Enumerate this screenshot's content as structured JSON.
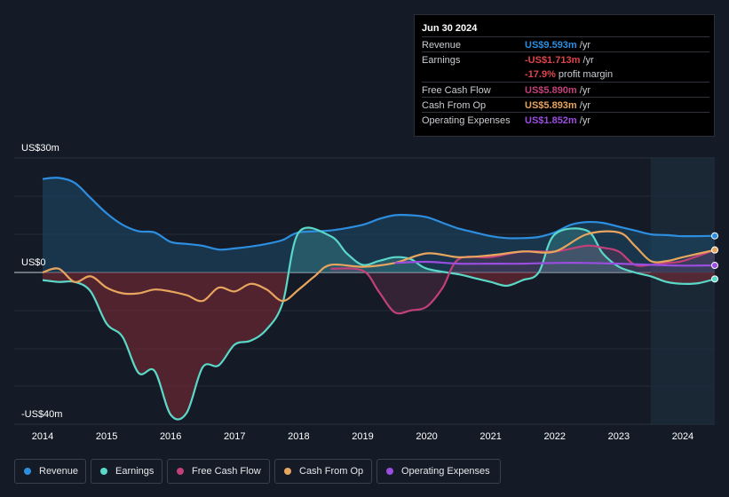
{
  "chart_data": {
    "type": "area",
    "y_axis": {
      "top_label": "US$30m",
      "zero_label": "US$0",
      "bottom_label": "-US$40m",
      "ylim": [
        -40,
        30
      ]
    },
    "x_ticks": [
      "2014",
      "2015",
      "2016",
      "2017",
      "2018",
      "2019",
      "2020",
      "2021",
      "2022",
      "2023",
      "2024"
    ],
    "x_range": [
      2013.6,
      2024.5
    ],
    "highlight_start": 2023.5,
    "series": [
      {
        "name": "Revenue",
        "color": "#2d8ee0",
        "points": [
          [
            2014.0,
            24.5
          ],
          [
            2014.25,
            24.8
          ],
          [
            2014.5,
            23.5
          ],
          [
            2014.75,
            19.5
          ],
          [
            2015.0,
            15.5
          ],
          [
            2015.25,
            12.5
          ],
          [
            2015.5,
            10.8
          ],
          [
            2015.75,
            10.5
          ],
          [
            2016.0,
            8.0
          ],
          [
            2016.25,
            7.5
          ],
          [
            2016.5,
            7.0
          ],
          [
            2016.75,
            6.0
          ],
          [
            2017.0,
            6.3
          ],
          [
            2017.25,
            6.8
          ],
          [
            2017.5,
            7.5
          ],
          [
            2017.75,
            8.5
          ],
          [
            2018.0,
            10.5
          ],
          [
            2018.5,
            11.0
          ],
          [
            2019.0,
            12.5
          ],
          [
            2019.25,
            14.0
          ],
          [
            2019.5,
            15.0
          ],
          [
            2019.75,
            15.0
          ],
          [
            2020.0,
            14.5
          ],
          [
            2020.25,
            13.0
          ],
          [
            2020.5,
            11.5
          ],
          [
            2020.75,
            10.5
          ],
          [
            2021.0,
            9.5
          ],
          [
            2021.25,
            9.0
          ],
          [
            2021.5,
            9.0
          ],
          [
            2021.75,
            9.3
          ],
          [
            2022.0,
            10.5
          ],
          [
            2022.25,
            12.5
          ],
          [
            2022.5,
            13.2
          ],
          [
            2022.75,
            13.0
          ],
          [
            2023.0,
            12.0
          ],
          [
            2023.25,
            11.0
          ],
          [
            2023.5,
            10.0
          ],
          [
            2023.75,
            9.8
          ],
          [
            2024.0,
            9.5
          ],
          [
            2024.5,
            9.6
          ]
        ]
      },
      {
        "name": "Earnings",
        "color": "#5ad8c8",
        "points": [
          [
            2014.0,
            -2.0
          ],
          [
            2014.25,
            -2.5
          ],
          [
            2014.5,
            -2.5
          ],
          [
            2014.75,
            -5.0
          ],
          [
            2015.0,
            -13.5
          ],
          [
            2015.25,
            -17.0
          ],
          [
            2015.5,
            -26.5
          ],
          [
            2015.75,
            -26.0
          ],
          [
            2016.0,
            -37.5
          ],
          [
            2016.25,
            -37.0
          ],
          [
            2016.5,
            -25.0
          ],
          [
            2016.75,
            -24.5
          ],
          [
            2017.0,
            -19.0
          ],
          [
            2017.25,
            -18.0
          ],
          [
            2017.5,
            -15.0
          ],
          [
            2017.75,
            -8.0
          ],
          [
            2018.0,
            10.5
          ],
          [
            2018.5,
            9.5
          ],
          [
            2018.75,
            5.0
          ],
          [
            2019.0,
            2.0
          ],
          [
            2019.25,
            3.0
          ],
          [
            2019.5,
            4.0
          ],
          [
            2019.75,
            3.5
          ],
          [
            2020.0,
            1.0
          ],
          [
            2020.5,
            -0.5
          ],
          [
            2020.75,
            -1.5
          ],
          [
            2021.0,
            -2.5
          ],
          [
            2021.25,
            -3.5
          ],
          [
            2021.5,
            -2.0
          ],
          [
            2021.75,
            0.0
          ],
          [
            2022.0,
            10.0
          ],
          [
            2022.5,
            11.0
          ],
          [
            2022.75,
            5.0
          ],
          [
            2023.0,
            1.5
          ],
          [
            2023.25,
            0.0
          ],
          [
            2023.5,
            -1.0
          ],
          [
            2023.75,
            -2.5
          ],
          [
            2024.0,
            -3.0
          ],
          [
            2024.25,
            -2.8
          ],
          [
            2024.5,
            -1.713
          ]
        ]
      },
      {
        "name": "Free Cash Flow",
        "color": "#c2407a",
        "points": [
          [
            2018.5,
            1.0
          ],
          [
            2019.0,
            0.5
          ],
          [
            2019.25,
            -5.0
          ],
          [
            2019.5,
            -10.5
          ],
          [
            2019.75,
            -10.0
          ],
          [
            2020.0,
            -9.0
          ],
          [
            2020.25,
            -4.0
          ],
          [
            2020.5,
            3.5
          ],
          [
            2021.0,
            4.0
          ],
          [
            2021.5,
            5.5
          ],
          [
            2022.0,
            5.5
          ],
          [
            2022.5,
            7.0
          ],
          [
            2022.75,
            6.5
          ],
          [
            2023.0,
            5.5
          ],
          [
            2023.25,
            2.0
          ],
          [
            2023.5,
            2.0
          ],
          [
            2023.75,
            2.5
          ],
          [
            2024.0,
            3.0
          ],
          [
            2024.5,
            5.89
          ]
        ]
      },
      {
        "name": "Cash From Op",
        "color": "#e8a55e",
        "points": [
          [
            2014.0,
            0.0
          ],
          [
            2014.25,
            1.0
          ],
          [
            2014.5,
            -2.5
          ],
          [
            2014.75,
            -1.0
          ],
          [
            2015.0,
            -4.0
          ],
          [
            2015.25,
            -5.5
          ],
          [
            2015.5,
            -5.5
          ],
          [
            2015.75,
            -4.5
          ],
          [
            2016.0,
            -5.0
          ],
          [
            2016.25,
            -6.0
          ],
          [
            2016.5,
            -7.5
          ],
          [
            2016.75,
            -4.0
          ],
          [
            2017.0,
            -5.0
          ],
          [
            2017.25,
            -3.0
          ],
          [
            2017.5,
            -4.5
          ],
          [
            2017.75,
            -7.5
          ],
          [
            2018.0,
            -4.5
          ],
          [
            2018.25,
            -1.0
          ],
          [
            2018.5,
            2.0
          ],
          [
            2019.0,
            1.5
          ],
          [
            2019.5,
            2.5
          ],
          [
            2020.0,
            5.0
          ],
          [
            2020.5,
            4.0
          ],
          [
            2021.0,
            4.5
          ],
          [
            2021.5,
            5.5
          ],
          [
            2022.0,
            5.5
          ],
          [
            2022.5,
            10.0
          ],
          [
            2023.0,
            10.5
          ],
          [
            2023.25,
            7.0
          ],
          [
            2023.5,
            3.0
          ],
          [
            2023.75,
            3.0
          ],
          [
            2024.0,
            4.0
          ],
          [
            2024.5,
            5.893
          ]
        ]
      },
      {
        "name": "Operating Expenses",
        "color": "#9b4de0",
        "points": [
          [
            2019.5,
            2.5
          ],
          [
            2020.0,
            2.8
          ],
          [
            2020.5,
            2.3
          ],
          [
            2021.0,
            2.3
          ],
          [
            2021.5,
            2.3
          ],
          [
            2022.0,
            2.5
          ],
          [
            2022.5,
            2.5
          ],
          [
            2023.0,
            2.3
          ],
          [
            2023.5,
            2.0
          ],
          [
            2024.0,
            1.8
          ],
          [
            2024.5,
            1.852
          ]
        ]
      }
    ]
  },
  "tooltip": {
    "date": "Jun 30 2024",
    "rows": [
      {
        "label": "Revenue",
        "value": "US$9.593m",
        "unit": "/yr",
        "color": "#2d8ee0"
      },
      {
        "label": "Earnings",
        "value": "-US$1.713m",
        "unit": "/yr",
        "color": "#e0454a"
      },
      {
        "label": "",
        "value": "-17.9%",
        "unit": "profit margin",
        "color": "#e0454a"
      },
      {
        "label": "Free Cash Flow",
        "value": "US$5.890m",
        "unit": "/yr",
        "color": "#c2407a"
      },
      {
        "label": "Cash From Op",
        "value": "US$5.893m",
        "unit": "/yr",
        "color": "#e8a55e"
      },
      {
        "label": "Operating Expenses",
        "value": "US$1.852m",
        "unit": "/yr",
        "color": "#9b4de0"
      }
    ]
  },
  "legend": [
    {
      "label": "Revenue",
      "color": "#2d8ee0"
    },
    {
      "label": "Earnings",
      "color": "#5ad8c8"
    },
    {
      "label": "Free Cash Flow",
      "color": "#c2407a"
    },
    {
      "label": "Cash From Op",
      "color": "#e8a55e"
    },
    {
      "label": "Operating Expenses",
      "color": "#9b4de0"
    }
  ]
}
